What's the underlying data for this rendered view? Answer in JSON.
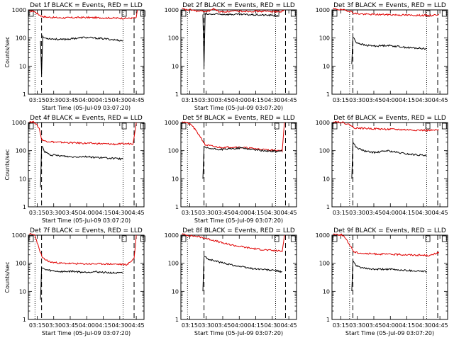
{
  "figure": {
    "background": "#ffffff",
    "series_colors": {
      "events": "#000000",
      "lld": "#e00000"
    }
  },
  "chart_data": [
    {
      "type": "line",
      "title": "Det 1f BLACK = Events, RED = LLD",
      "ylabel": "Counts/sec",
      "xlabel": "Start Time (05-Jul-09 03:07:20)",
      "y_scale": "log",
      "ylim": [
        1,
        1000
      ],
      "y_ticks": [
        "1",
        "10",
        "100",
        "1000"
      ],
      "x_range_min": [
        3.0,
        44.0
      ],
      "x_ticks": [
        "03:15",
        "03:30",
        "03:45",
        "04:00",
        "04:15",
        "04:30",
        "04:45"
      ],
      "x_tick_min": [
        8,
        23,
        38,
        53,
        68,
        83,
        98
      ],
      "markers": {
        "E": 87,
        "S_end": 104
      },
      "vlines_dotted": [
        6,
        86
      ],
      "vlines_dashed": [
        12,
        96
      ],
      "events_points": [
        [
          11,
          80
        ],
        [
          12,
          5
        ],
        [
          13,
          110
        ],
        [
          15,
          100
        ],
        [
          20,
          95
        ],
        [
          30,
          88
        ],
        [
          40,
          95
        ],
        [
          50,
          105
        ],
        [
          60,
          100
        ],
        [
          70,
          93
        ],
        [
          80,
          85
        ],
        [
          86,
          80
        ]
      ],
      "lld_points": [
        [
          1,
          900
        ],
        [
          5,
          900
        ],
        [
          9,
          700
        ],
        [
          12,
          600
        ],
        [
          15,
          560
        ],
        [
          30,
          520
        ],
        [
          50,
          540
        ],
        [
          70,
          520
        ],
        [
          90,
          500
        ],
        [
          98,
          520
        ],
        [
          99,
          1000
        ]
      ]
    },
    {
      "type": "line",
      "title": "Det 2f BLACK = Events, RED = LLD",
      "ylabel": "",
      "xlabel": "Start Time (05-Jul-09 03:07:20)",
      "y_scale": "log",
      "ylim": [
        1,
        1000
      ],
      "y_ticks": [
        "1",
        "10",
        "100",
        "1000"
      ],
      "x_range_min": [
        3.0,
        44.0
      ],
      "x_ticks": [
        "03:15",
        "03:30",
        "03:45",
        "04:00",
        "04:15",
        "04:30",
        "04:45"
      ],
      "x_tick_min": [
        8,
        23,
        38,
        53,
        68,
        83,
        98
      ],
      "markers": {
        "E": 87,
        "S_end": 102
      },
      "vlines_dotted": [
        6,
        86
      ],
      "vlines_dashed": [
        21,
        95
      ],
      "events_points": [
        [
          20,
          700
        ],
        [
          21,
          10
        ],
        [
          22,
          700
        ],
        [
          40,
          700
        ],
        [
          60,
          680
        ],
        [
          80,
          650
        ],
        [
          88,
          620
        ]
      ],
      "lld_points": [
        [
          1,
          1100
        ],
        [
          5,
          1000
        ],
        [
          10,
          1000
        ],
        [
          15,
          900
        ],
        [
          25,
          900
        ],
        [
          30,
          1100
        ],
        [
          35,
          850
        ],
        [
          50,
          900
        ],
        [
          70,
          900
        ],
        [
          85,
          880
        ],
        [
          90,
          850
        ],
        [
          94,
          1000
        ]
      ]
    },
    {
      "type": "line",
      "title": "Det 3f BLACK = Events, RED = LLD",
      "ylabel": "",
      "xlabel": "",
      "y_scale": "log",
      "ylim": [
        1,
        1000
      ],
      "y_ticks": [
        "1",
        "10",
        "100",
        "1000"
      ],
      "x_range_min": [
        3.0,
        44.0
      ],
      "x_ticks": [
        "03:15",
        "03:30",
        "03:45",
        "04:00",
        "04:15",
        "04:30",
        "04:45"
      ],
      "x_tick_min": [
        8,
        23,
        38,
        53,
        68,
        83,
        98
      ],
      "markers": {
        "E": 87,
        "S_end": 102
      },
      "vlines_dotted": [
        16,
        86
      ],
      "vlines_dashed": [
        19,
        96
      ],
      "events_points": [
        [
          18,
          12
        ],
        [
          19,
          110
        ],
        [
          22,
          70
        ],
        [
          30,
          55
        ],
        [
          40,
          52
        ],
        [
          50,
          55
        ],
        [
          60,
          50
        ],
        [
          70,
          45
        ],
        [
          80,
          43
        ],
        [
          86,
          42
        ]
      ],
      "lld_points": [
        [
          1,
          1100
        ],
        [
          10,
          1000
        ],
        [
          17,
          900
        ],
        [
          20,
          750
        ],
        [
          30,
          700
        ],
        [
          50,
          680
        ],
        [
          70,
          650
        ],
        [
          90,
          630
        ],
        [
          97,
          700
        ]
      ]
    },
    {
      "type": "line",
      "title": "Det 4f BLACK = Events, RED = LLD",
      "ylabel": "Counts/sec",
      "xlabel": "Start Time (05-Jul-09 03:07:20)",
      "y_scale": "log",
      "ylim": [
        1,
        1000
      ],
      "y_ticks": [
        "1",
        "10",
        "100",
        "1000"
      ],
      "x_range_min": [
        3.0,
        44.0
      ],
      "x_ticks": [
        "03:15",
        "03:30",
        "03:45",
        "04:00",
        "04:15",
        "04:30",
        "04:45"
      ],
      "x_tick_min": [
        8,
        23,
        38,
        53,
        68,
        83,
        98
      ],
      "markers": {
        "E": 87,
        "S_end": 104
      },
      "vlines_dotted": [
        6,
        86
      ],
      "vlines_dashed": [
        12,
        96
      ],
      "events_points": [
        [
          11,
          5
        ],
        [
          12,
          150
        ],
        [
          15,
          90
        ],
        [
          20,
          70
        ],
        [
          30,
          65
        ],
        [
          40,
          60
        ],
        [
          50,
          62
        ],
        [
          60,
          58
        ],
        [
          70,
          55
        ],
        [
          80,
          52
        ],
        [
          86,
          50
        ]
      ],
      "lld_points": [
        [
          1,
          1100
        ],
        [
          6,
          1000
        ],
        [
          10,
          600
        ],
        [
          12,
          250
        ],
        [
          15,
          220
        ],
        [
          25,
          200
        ],
        [
          40,
          190
        ],
        [
          60,
          180
        ],
        [
          80,
          170
        ],
        [
          95,
          180
        ],
        [
          98,
          1000
        ]
      ]
    },
    {
      "type": "line",
      "title": "Det 5f BLACK = Events, RED = LLD",
      "ylabel": "",
      "xlabel": "Start Time (05-Jul-09 03:07:20)",
      "y_scale": "log",
      "ylim": [
        1,
        1000
      ],
      "y_ticks": [
        "1",
        "10",
        "100",
        "1000"
      ],
      "x_range_min": [
        3.0,
        44.0
      ],
      "x_ticks": [
        "03:15",
        "03:30",
        "03:45",
        "04:00",
        "04:15",
        "04:30",
        "04:45"
      ],
      "x_tick_min": [
        8,
        23,
        38,
        53,
        68,
        83,
        98
      ],
      "markers": {
        "E": 87,
        "S_end": 102
      },
      "vlines_dotted": [
        6,
        86
      ],
      "vlines_dashed": [
        21,
        95
      ],
      "events_points": [
        [
          20,
          10
        ],
        [
          21,
          130
        ],
        [
          25,
          120
        ],
        [
          35,
          110
        ],
        [
          45,
          115
        ],
        [
          55,
          125
        ],
        [
          65,
          110
        ],
        [
          75,
          100
        ],
        [
          85,
          95
        ],
        [
          92,
          95
        ]
      ],
      "lld_points": [
        [
          1,
          1100
        ],
        [
          5,
          1000
        ],
        [
          10,
          800
        ],
        [
          18,
          300
        ],
        [
          22,
          160
        ],
        [
          35,
          130
        ],
        [
          50,
          135
        ],
        [
          65,
          120
        ],
        [
          80,
          105
        ],
        [
          92,
          100
        ],
        [
          94,
          1000
        ]
      ]
    },
    {
      "type": "line",
      "title": "Det 6f BLACK = Events, RED = LLD",
      "ylabel": "",
      "xlabel": "",
      "y_scale": "log",
      "ylim": [
        1,
        1000
      ],
      "y_ticks": [
        "1",
        "10",
        "100",
        "1000"
      ],
      "x_range_min": [
        3.0,
        44.0
      ],
      "x_ticks": [
        "03:15",
        "03:30",
        "03:45",
        "04:00",
        "04:15",
        "04:30",
        "04:45"
      ],
      "x_tick_min": [
        8,
        23,
        38,
        53,
        68,
        83,
        98
      ],
      "markers": {
        "E": 87,
        "S_end": 102
      },
      "vlines_dotted": [
        16,
        86
      ],
      "vlines_dashed": [
        19,
        96
      ],
      "events_points": [
        [
          18,
          10
        ],
        [
          19,
          200
        ],
        [
          22,
          130
        ],
        [
          30,
          95
        ],
        [
          40,
          85
        ],
        [
          50,
          100
        ],
        [
          60,
          85
        ],
        [
          70,
          75
        ],
        [
          80,
          70
        ],
        [
          86,
          65
        ]
      ],
      "lld_points": [
        [
          1,
          1100
        ],
        [
          10,
          1000
        ],
        [
          17,
          800
        ],
        [
          20,
          650
        ],
        [
          30,
          620
        ],
        [
          50,
          580
        ],
        [
          70,
          550
        ],
        [
          90,
          520
        ],
        [
          97,
          550
        ]
      ]
    },
    {
      "type": "line",
      "title": "Det 7f BLACK = Events, RED = LLD",
      "ylabel": "Counts/sec",
      "xlabel": "Start Time (05-Jul-09 03:07:20)",
      "y_scale": "log",
      "ylim": [
        1,
        1000
      ],
      "y_ticks": [
        "1",
        "10",
        "100",
        "1000"
      ],
      "x_range_min": [
        3.0,
        44.0
      ],
      "x_ticks": [
        "03:15",
        "03:30",
        "03:45",
        "04:00",
        "04:15",
        "04:30",
        "04:45"
      ],
      "x_tick_min": [
        8,
        23,
        38,
        53,
        68,
        83,
        98
      ],
      "markers": {
        "E": 87,
        "S_end": 104
      },
      "vlines_dotted": [
        6,
        86
      ],
      "vlines_dashed": [
        12,
        96
      ],
      "events_points": [
        [
          11,
          5
        ],
        [
          12,
          70
        ],
        [
          15,
          60
        ],
        [
          20,
          55
        ],
        [
          30,
          50
        ],
        [
          40,
          52
        ],
        [
          50,
          48
        ],
        [
          60,
          50
        ],
        [
          70,
          47
        ],
        [
          80,
          45
        ],
        [
          86,
          45
        ]
      ],
      "lld_points": [
        [
          1,
          1100
        ],
        [
          6,
          1000
        ],
        [
          10,
          300
        ],
        [
          13,
          150
        ],
        [
          20,
          110
        ],
        [
          30,
          100
        ],
        [
          50,
          95
        ],
        [
          70,
          95
        ],
        [
          90,
          90
        ],
        [
          96,
          150
        ],
        [
          98,
          1000
        ]
      ]
    },
    {
      "type": "line",
      "title": "Det 8f BLACK = Events, RED = LLD",
      "ylabel": "",
      "xlabel": "Start Time (05-Jul-09 03:07:20)",
      "y_scale": "log",
      "ylim": [
        1,
        1000
      ],
      "y_ticks": [
        "1",
        "10",
        "100",
        "1000"
      ],
      "x_range_min": [
        3.0,
        44.0
      ],
      "x_ticks": [
        "03:15",
        "03:30",
        "03:45",
        "04:00",
        "04:15",
        "04:30",
        "04:45"
      ],
      "x_tick_min": [
        8,
        23,
        38,
        53,
        68,
        83,
        98
      ],
      "markers": {
        "E": 87,
        "S_end": 102
      },
      "vlines_dotted": [
        6,
        86
      ],
      "vlines_dashed": [
        21,
        95
      ],
      "events_points": [
        [
          20,
          10
        ],
        [
          21,
          180
        ],
        [
          25,
          140
        ],
        [
          35,
          110
        ],
        [
          45,
          90
        ],
        [
          55,
          75
        ],
        [
          65,
          65
        ],
        [
          75,
          60
        ],
        [
          85,
          55
        ],
        [
          92,
          50
        ]
      ],
      "lld_points": [
        [
          1,
          1100
        ],
        [
          5,
          1000
        ],
        [
          15,
          900
        ],
        [
          21,
          800
        ],
        [
          30,
          650
        ],
        [
          40,
          500
        ],
        [
          50,
          420
        ],
        [
          60,
          360
        ],
        [
          70,
          320
        ],
        [
          80,
          290
        ],
        [
          92,
          270
        ],
        [
          94,
          1000
        ]
      ]
    },
    {
      "type": "line",
      "title": "Det 9f BLACK = Events, RED = LLD",
      "ylabel": "",
      "xlabel": "Start Time (05-Jul-09 03:07:20)",
      "y_scale": "log",
      "ylim": [
        1,
        1000
      ],
      "y_ticks": [
        "1",
        "10",
        "100",
        "1000"
      ],
      "x_range_min": [
        3.0,
        44.0
      ],
      "x_ticks": [
        "03:15",
        "03:30",
        "03:45",
        "04:00",
        "04:15",
        "04:30",
        "04:45"
      ],
      "x_tick_min": [
        8,
        23,
        38,
        53,
        68,
        83,
        98
      ],
      "markers": {
        "E": 87,
        "S_end": 102
      },
      "vlines_dotted": [
        16,
        86
      ],
      "vlines_dashed": [
        19,
        96
      ],
      "events_points": [
        [
          18,
          10
        ],
        [
          19,
          120
        ],
        [
          22,
          80
        ],
        [
          30,
          65
        ],
        [
          40,
          60
        ],
        [
          50,
          62
        ],
        [
          60,
          58
        ],
        [
          70,
          55
        ],
        [
          80,
          53
        ],
        [
          86,
          50
        ]
      ],
      "lld_points": [
        [
          1,
          1100
        ],
        [
          10,
          1000
        ],
        [
          17,
          400
        ],
        [
          20,
          250
        ],
        [
          30,
          220
        ],
        [
          50,
          210
        ],
        [
          70,
          200
        ],
        [
          90,
          190
        ],
        [
          97,
          250
        ]
      ]
    }
  ]
}
